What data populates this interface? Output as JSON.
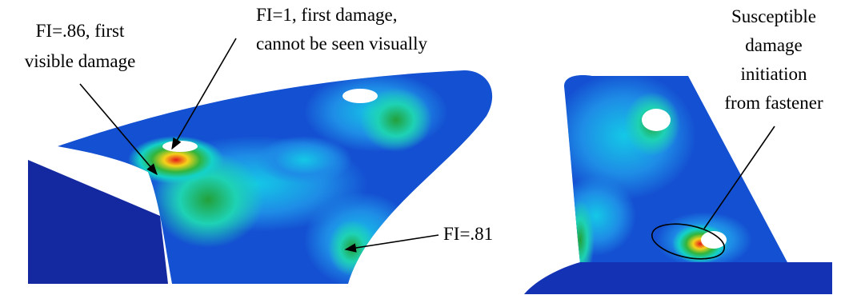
{
  "annotations": {
    "left_hole": {
      "lines": [
        "FI=.86, first",
        "visible damage"
      ]
    },
    "first_damage": {
      "lines": [
        "FI=1, first damage,",
        "cannot be seen visually"
      ]
    },
    "lower_edge": {
      "lines": [
        "FI=.81"
      ]
    },
    "fastener": {
      "lines": [
        "Susceptible",
        "damage",
        "initiation",
        "from fastener"
      ]
    }
  }
}
